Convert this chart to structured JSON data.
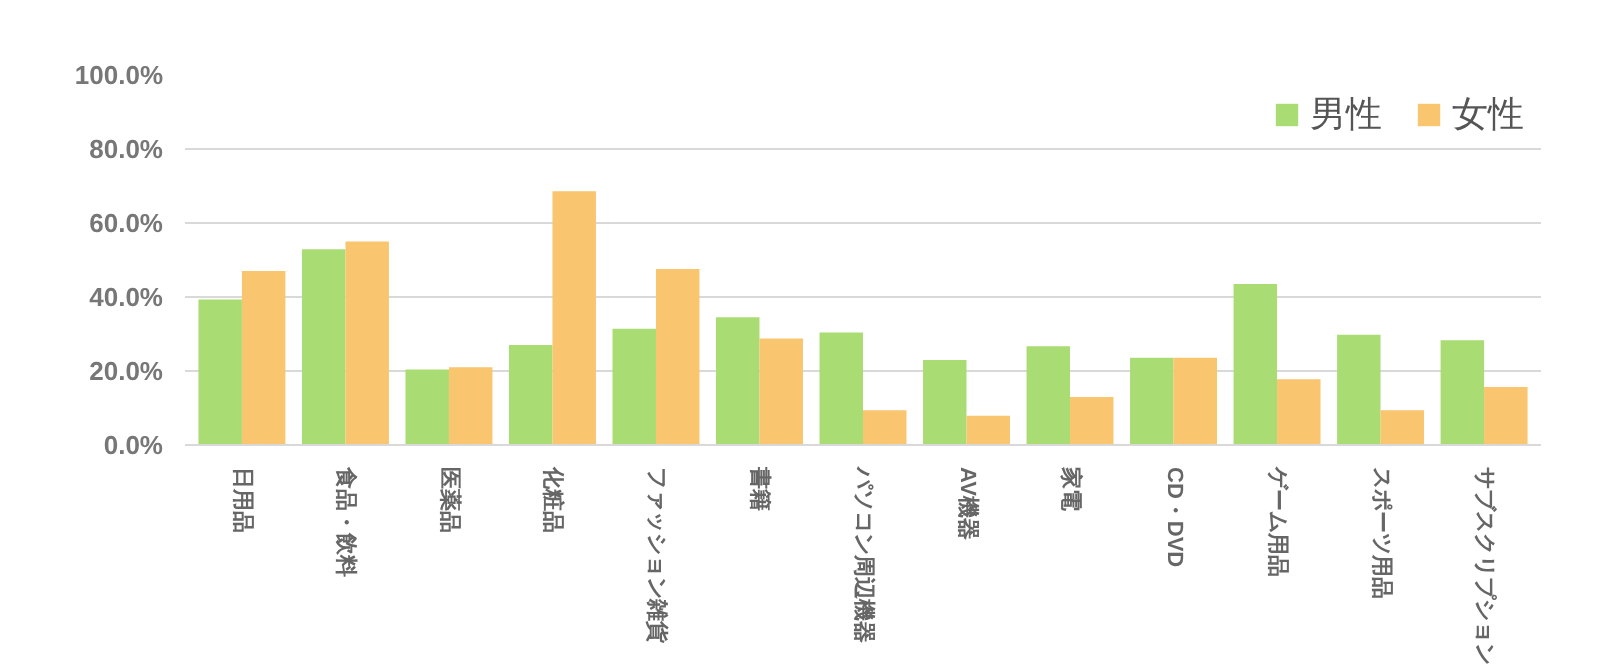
{
  "chart_data": {
    "type": "bar",
    "categories": [
      "日用品",
      "食品・飲料",
      "医薬品",
      "化粧品",
      "ファッション雑貨",
      "書籍",
      "パソコン周辺機器",
      "AV機器",
      "家電",
      "CD・DVD",
      "ゲーム用品",
      "スポーツ用品",
      "サブスクリプション"
    ],
    "series": [
      {
        "name": "男性",
        "color": "#a9dd74",
        "values": [
          39.3,
          52.9,
          20.4,
          27.0,
          31.4,
          34.5,
          30.4,
          23.0,
          26.7,
          23.6,
          43.5,
          29.8,
          28.3
        ]
      },
      {
        "name": "女性",
        "color": "#f9c56e",
        "values": [
          47.0,
          55.0,
          21.0,
          68.6,
          47.6,
          28.8,
          9.4,
          7.9,
          13.0,
          23.6,
          17.8,
          9.4,
          15.7
        ]
      }
    ],
    "ylim": [
      0,
      100
    ],
    "yticks": [
      {
        "value": 0,
        "label": "0.0%"
      },
      {
        "value": 20,
        "label": "20.0%"
      },
      {
        "value": 40,
        "label": "40.0%"
      },
      {
        "value": 60,
        "label": "60.0%"
      },
      {
        "value": 80,
        "label": "80.0%"
      },
      {
        "value": 100,
        "label": "100.0%"
      }
    ],
    "grid": "y",
    "legend": "top right"
  }
}
